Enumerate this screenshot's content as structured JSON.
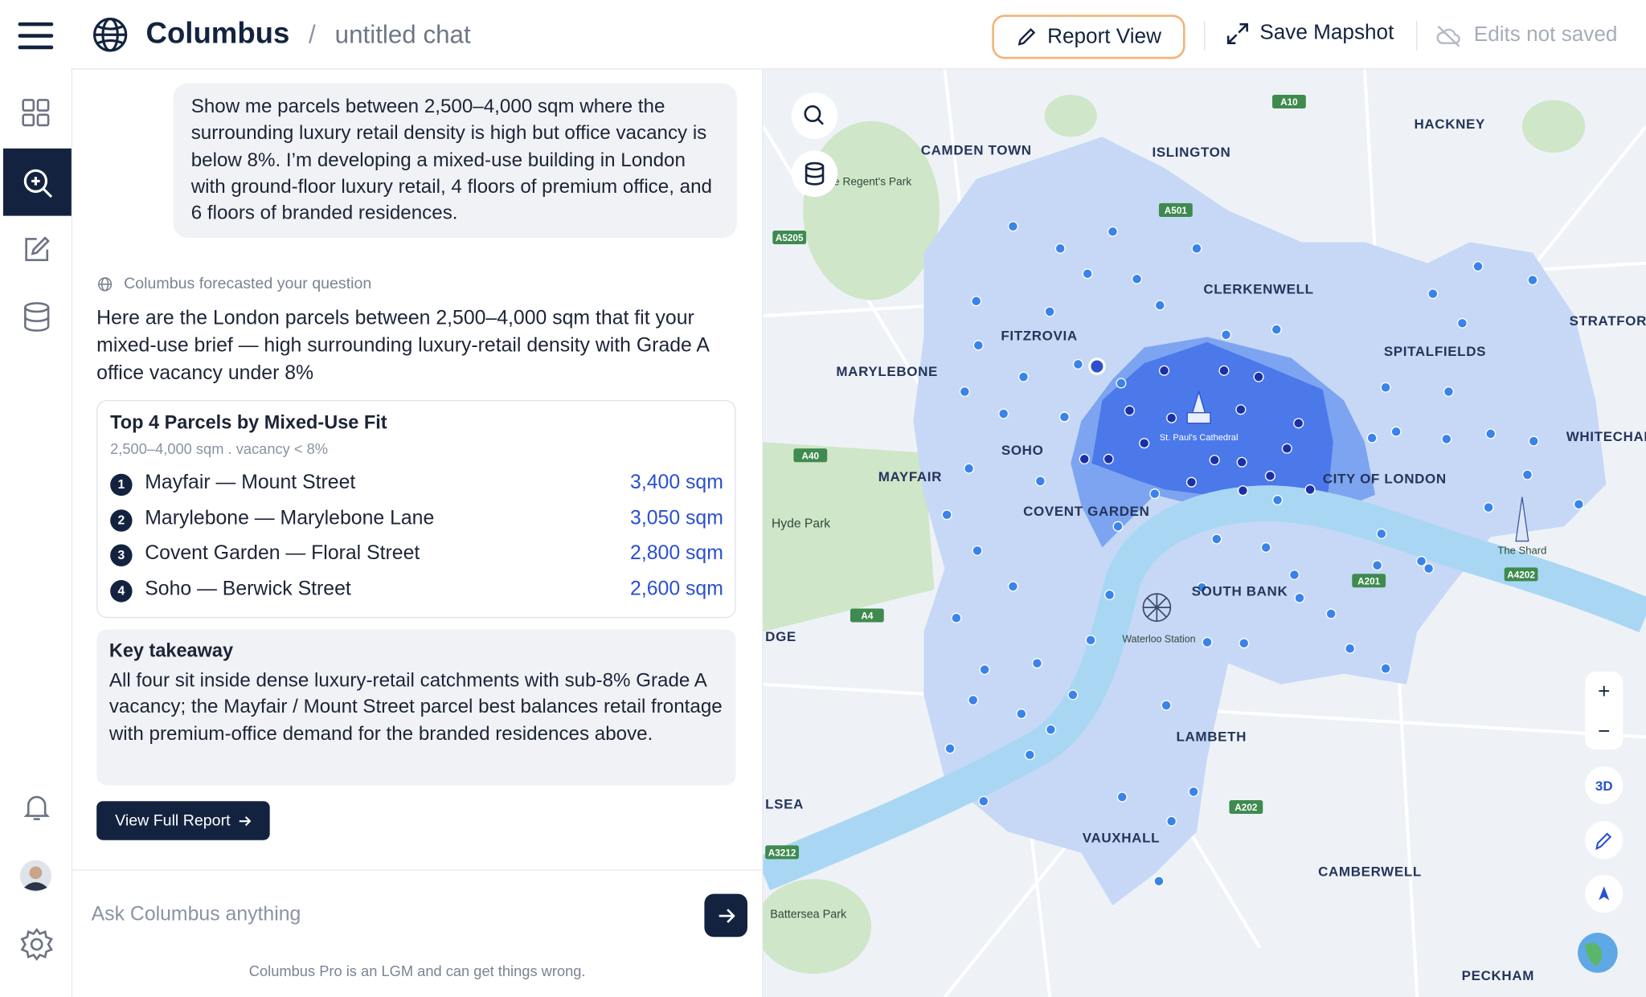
{
  "header": {
    "brand": "Columbus",
    "separator": "/",
    "chat_title": "untitled chat",
    "report_view": "Report View",
    "save_mapshot": "Save Mapshot",
    "save_status": "Edits not saved"
  },
  "chat": {
    "user_message": "Show me parcels between 2,500–4,000 sqm where the surrounding luxury retail density is high but office vacancy is below 8%. I’m developing a mixed-use building in London with ground-floor luxury retail, 4 floors of premium office, and 6 floors of branded residences.",
    "forecast_note": "Columbus forecasted your question",
    "response": "Here are the London parcels between 2,500–4,000 sqm that fit your mixed-use brief — high surrounding luxury-retail density with Grade A office vacancy under 8%",
    "card": {
      "title": "Top 4 Parcels by Mixed-Use Fit",
      "subtitle": "2,500–4,000 sqm . vacancy < 8%",
      "rows": [
        {
          "rank": "1",
          "name": "Mayfair — Mount Street",
          "area": "3,400 sqm"
        },
        {
          "rank": "2",
          "name": "Marylebone — Marylebone Lane",
          "area": "3,050 sqm"
        },
        {
          "rank": "3",
          "name": "Covent Garden — Floral Street",
          "area": "2,800 sqm"
        },
        {
          "rank": "4",
          "name": "Soho — Berwick Street",
          "area": "2,600 sqm"
        }
      ]
    },
    "takeaway": {
      "title": "Key takeaway",
      "text": "All four sit inside dense luxury-retail catchments with sub-8% Grade A vacancy; the Mayfair / Mount Street parcel best balances retail frontage with premium-office demand for the branded residences above."
    },
    "button": "View Full Report",
    "input_placeholder": "Ask Columbus anything",
    "disclaimer": "Columbus Pro is an LGM and can get things wrong."
  },
  "map": {
    "labels": [
      "CAMDEN TOWN",
      "ISLINGTON",
      "HACKNEY",
      "The Regent's Park",
      "CLERKENWELL",
      "STRATFORD",
      "FITZROVIA",
      "SPITALFIELDS",
      "MARYLEBONE",
      "SOHO",
      "WHITECHAPEL",
      "MAYFAIR",
      "CITY OF LONDON",
      "COVENT GARDEN",
      "Hyde Park",
      "St. Paul's Cathedral",
      "The Shard",
      "SOUTH BANK",
      "Waterloo Station",
      "DGE",
      "LAMBETH",
      "LSEA",
      "VAUXHALL",
      "CAMBERWELL",
      "Battersea Park",
      "PECKHAM"
    ],
    "roads": [
      "A10",
      "A501",
      "A5205",
      "A40",
      "A4",
      "A201",
      "A4202",
      "A202",
      "A3212"
    ],
    "controls": {
      "zoom_in": "+",
      "zoom_out": "−",
      "view_3d": "3D"
    }
  }
}
